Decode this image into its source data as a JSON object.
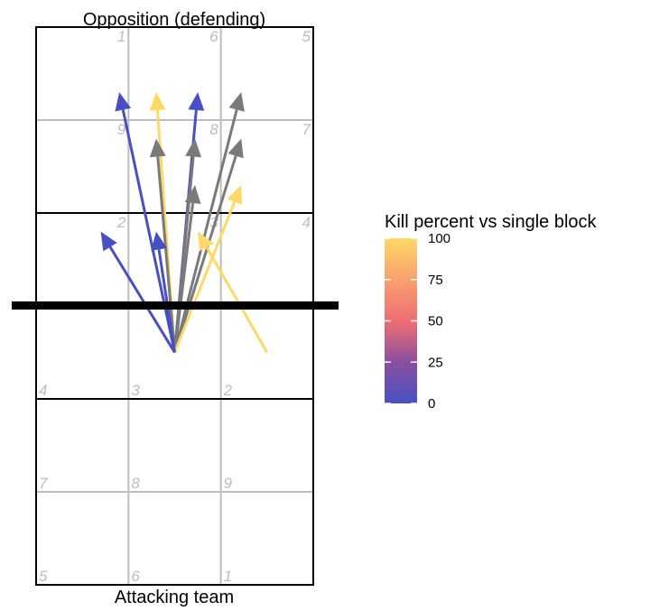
{
  "chart_data": {
    "type": "arrow-court",
    "title_top": "Opposition (defending)",
    "title_bottom": "Attacking team",
    "x_range": [
      0.5,
      3.5
    ],
    "y_range": [
      0.5,
      6.5
    ],
    "net_y": 3.5,
    "zones": {
      "attacking": [
        {
          "label": "4",
          "col": 1,
          "row": 3
        },
        {
          "label": "3",
          "col": 2,
          "row": 3
        },
        {
          "label": "2",
          "col": 3,
          "row": 3
        },
        {
          "label": "7",
          "col": 1,
          "row": 2
        },
        {
          "label": "8",
          "col": 2,
          "row": 2
        },
        {
          "label": "9",
          "col": 3,
          "row": 2
        },
        {
          "label": "5",
          "col": 1,
          "row": 1
        },
        {
          "label": "6",
          "col": 2,
          "row": 1
        },
        {
          "label": "1",
          "col": 3,
          "row": 1
        }
      ],
      "opposition": [
        {
          "label": "2",
          "col": 1,
          "row": 4
        },
        {
          "label": "3",
          "col": 2,
          "row": 4
        },
        {
          "label": "4",
          "col": 3,
          "row": 4
        },
        {
          "label": "9",
          "col": 1,
          "row": 5
        },
        {
          "label": "8",
          "col": 2,
          "row": 5
        },
        {
          "label": "7",
          "col": 3,
          "row": 5
        },
        {
          "label": "1",
          "col": 1,
          "row": 6
        },
        {
          "label": "6",
          "col": 2,
          "row": 6
        },
        {
          "label": "5",
          "col": 3,
          "row": 6
        }
      ]
    },
    "arrows": [
      {
        "from": [
          2.0,
          3.0
        ],
        "to": [
          1.4,
          5.8
        ],
        "kill_pct": 0
      },
      {
        "from": [
          2.0,
          3.0
        ],
        "to": [
          1.8,
          5.8
        ],
        "kill_pct": 100
      },
      {
        "from": [
          2.0,
          3.0
        ],
        "to": [
          2.25,
          5.8
        ],
        "kill_pct": 0
      },
      {
        "from": [
          2.0,
          3.0
        ],
        "to": [
          2.72,
          5.8
        ],
        "kill_pct": 20
      },
      {
        "from": [
          2.0,
          3.0
        ],
        "to": [
          1.8,
          5.3
        ],
        "kill_pct": 20
      },
      {
        "from": [
          2.0,
          3.0
        ],
        "to": [
          2.22,
          5.3
        ],
        "kill_pct": 20
      },
      {
        "from": [
          2.0,
          3.0
        ],
        "to": [
          2.72,
          5.3
        ],
        "kill_pct": 20
      },
      {
        "from": [
          2.0,
          3.0
        ],
        "to": [
          2.22,
          4.8
        ],
        "kill_pct": 20
      },
      {
        "from": [
          2.0,
          3.0
        ],
        "to": [
          2.72,
          4.8
        ],
        "kill_pct": 100
      },
      {
        "from": [
          2.0,
          3.0
        ],
        "to": [
          1.2,
          4.3
        ],
        "kill_pct": 0
      },
      {
        "from": [
          2.0,
          3.0
        ],
        "to": [
          1.8,
          4.3
        ],
        "kill_pct": 0
      },
      {
        "from": [
          3.0,
          3.0
        ],
        "to": [
          2.25,
          4.3
        ],
        "kill_pct": 100
      }
    ],
    "legend": {
      "title": "Kill percent vs single block",
      "range": [
        0,
        100
      ],
      "ticks": [
        0,
        25,
        50,
        75,
        100
      ],
      "colors": [
        "#4750c2",
        "#8a4fa0",
        "#ee6f72",
        "#f8a070",
        "#ffd966"
      ]
    },
    "colors": {
      "court_line": "#000000",
      "grid_line": "#bdbdbd",
      "zone_label": "#bdbdbd",
      "mid_arrow": "#7a7a7a"
    }
  }
}
